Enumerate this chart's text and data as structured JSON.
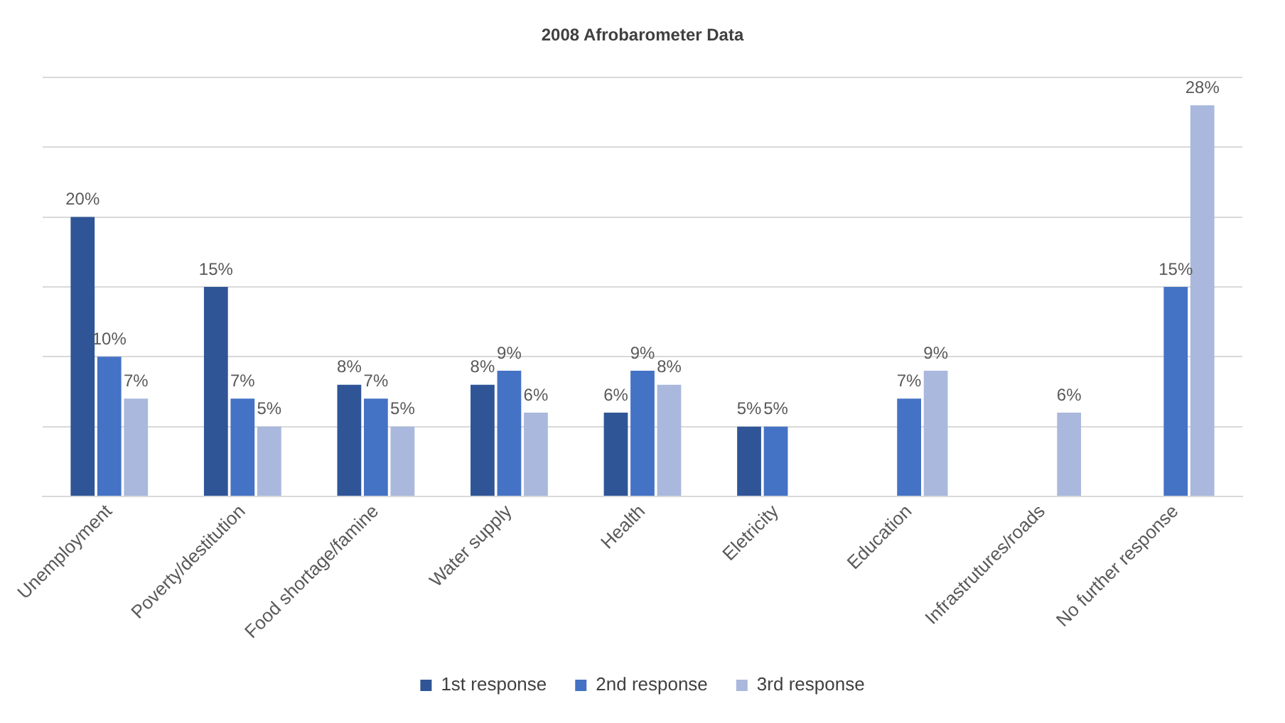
{
  "chart_data": {
    "type": "bar",
    "title": "2008 Afrobarometer Data",
    "categories": [
      "Unemployment",
      "Poverty/destitution",
      "Food shortage/famine",
      "Water supply",
      "Health",
      "Eletricity",
      "Education",
      "Infrastrutures/roads",
      "No further response"
    ],
    "series": [
      {
        "name": "1st response",
        "color": "#2f5597",
        "values": [
          20,
          15,
          8,
          8,
          6,
          5,
          null,
          null,
          null
        ],
        "value_labels": [
          "20%",
          "15%",
          "8%",
          "8%",
          "6%",
          "5%",
          null,
          null,
          null
        ]
      },
      {
        "name": "2nd response",
        "color": "#4472c4",
        "values": [
          10,
          7,
          7,
          9,
          9,
          5,
          7,
          null,
          15
        ],
        "value_labels": [
          "10%",
          "7%",
          "7%",
          "9%",
          "9%",
          "5%",
          "7%",
          null,
          "15%"
        ]
      },
      {
        "name": "3rd response",
        "color": "#a9b8dc",
        "values": [
          7,
          5,
          5,
          6,
          8,
          null,
          9,
          6,
          28
        ],
        "value_labels": [
          "7%",
          "5%",
          "5%",
          "6%",
          "8%",
          null,
          "9%",
          "6%",
          "28%"
        ]
      }
    ],
    "ylim": [
      0,
      30
    ],
    "yticks": [
      {
        "value": 0,
        "label": null
      },
      {
        "value": 5,
        "label": null
      },
      {
        "value": 10,
        "label": null
      },
      {
        "value": 15,
        "label": null
      },
      {
        "value": 20,
        "label": null
      },
      {
        "value": 25,
        "label": null
      },
      {
        "value": 30,
        "label": null
      }
    ],
    "grid": "y",
    "legend": "bottom",
    "tick_labels": "x"
  }
}
